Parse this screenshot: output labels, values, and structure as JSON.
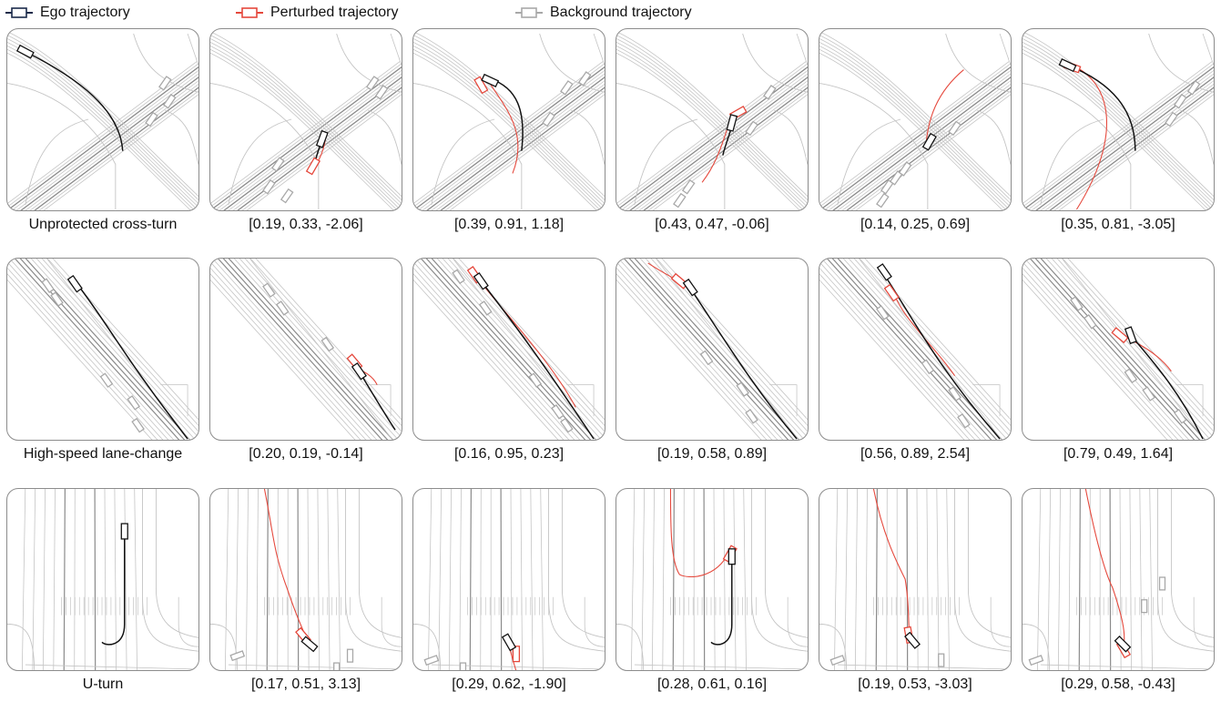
{
  "legend": {
    "ego_label": "Ego trajectory",
    "perturbed_label": "Perturbed trajectory",
    "background_label": "Background trajectory",
    "colors": {
      "ego": "#1b2a4a",
      "perturbed": "#e5483c",
      "background": "#a8a8a8"
    }
  },
  "rows": [
    {
      "scenario": "cross_turn",
      "captions": [
        "Unprotected cross-turn",
        "[0.19, 0.33, -2.06]",
        "[0.39, 0.91, 1.18]",
        "[0.43, 0.47, -0.06]",
        "[0.14, 0.25, 0.69]",
        "[0.35, 0.81, -3.05]"
      ]
    },
    {
      "scenario": "lane_change",
      "captions": [
        "High-speed lane-change",
        "[0.20, 0.19, -0.14]",
        "[0.16, 0.95, 0.23]",
        "[0.19, 0.58, 0.89]",
        "[0.56, 0.89, 2.54]",
        "[0.79, 0.49, 1.64]"
      ]
    },
    {
      "scenario": "u_turn",
      "captions": [
        "U-turn",
        "[0.17, 0.51, 3.13]",
        "[0.29, 0.62, -1.90]",
        "[0.28, 0.61, 0.16]",
        "[0.19, 0.53, -3.03]",
        "[0.29, 0.58, -0.43]"
      ]
    }
  ]
}
